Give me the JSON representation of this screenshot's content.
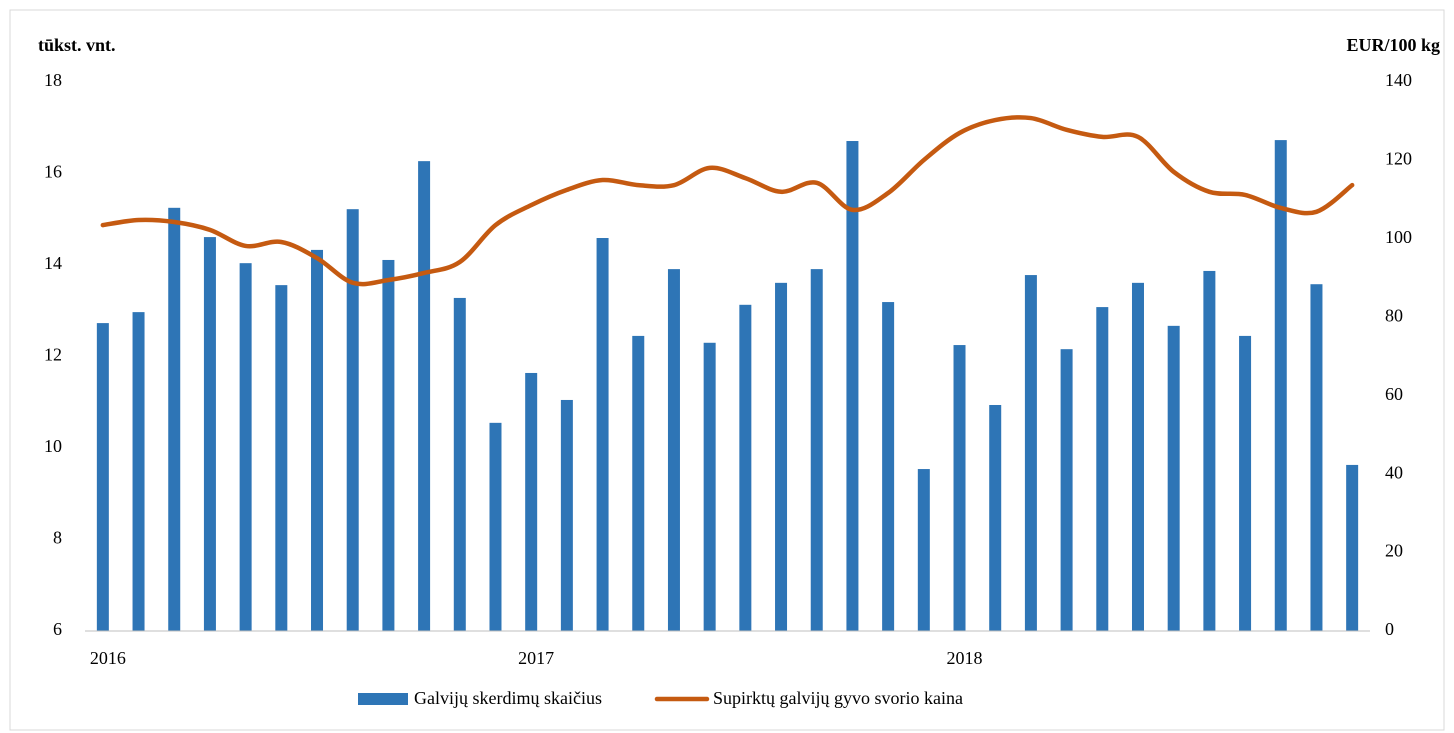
{
  "chart_data": {
    "type": "bar-line",
    "y_label": "tūkst. vnt.",
    "y2_label": "EUR/100 kg",
    "categories": [
      "2016",
      null,
      null,
      null,
      null,
      null,
      null,
      null,
      null,
      null,
      null,
      null,
      "2017",
      null,
      null,
      null,
      null,
      null,
      null,
      null,
      null,
      null,
      null,
      null,
      "2018",
      null,
      null,
      null,
      null,
      null,
      null,
      null,
      null,
      null,
      null,
      null
    ],
    "series": [
      {
        "name": "Galvijų skerdimų skaičius",
        "type": "bar",
        "color": "#2e75b6",
        "values": [
          12.73,
          12.97,
          15.25,
          14.61,
          14.04,
          13.56,
          14.33,
          15.22,
          14.11,
          16.27,
          13.28,
          10.55,
          11.64,
          11.05,
          14.59,
          12.45,
          13.91,
          12.3,
          13.13,
          13.61,
          13.91,
          16.71,
          13.19,
          9.54,
          12.25,
          10.94,
          13.78,
          12.16,
          13.08,
          13.61,
          12.67,
          13.87,
          12.45,
          16.73,
          13.58,
          9.63
        ]
      },
      {
        "name": "Supirktų galvijų gyvo svorio kaina",
        "type": "line",
        "axis": "y2",
        "color": "#c55a11",
        "values": [
          103.5,
          104.8,
          104.3,
          102.3,
          98.2,
          99.2,
          95.1,
          88.8,
          89.5,
          91.3,
          94.1,
          103.5,
          108.6,
          112.5,
          115.0,
          113.7,
          113.7,
          118.1,
          115.5,
          112.0,
          114.3,
          107.4,
          111.7,
          120.1,
          127.0,
          130.3,
          130.8,
          127.8,
          126.0,
          126.0,
          117.1,
          112.0,
          111.2,
          107.9,
          106.9,
          113.7
        ]
      }
    ],
    "ylim": [
      6,
      18
    ],
    "yticks": [
      6,
      8,
      10,
      12,
      14,
      16,
      18
    ],
    "y2lim": [
      0,
      140
    ],
    "y2ticks": [
      0,
      20,
      40,
      60,
      80,
      100,
      120,
      140
    ],
    "grid": false,
    "legend": "bottom"
  }
}
